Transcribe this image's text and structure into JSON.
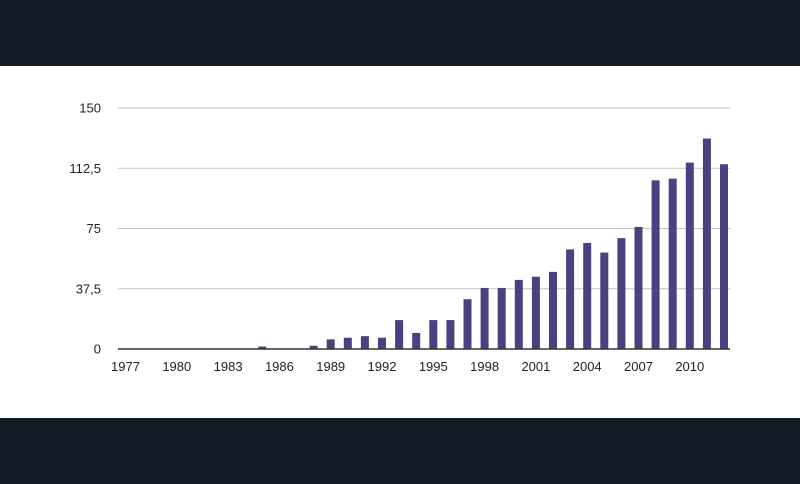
{
  "colors": {
    "background": "#121a24",
    "panel": "#ffffff",
    "bar": "#4c4080",
    "grid": "#c4c4c4",
    "axis": "#333333"
  },
  "chart_data": {
    "type": "bar",
    "title": "",
    "xlabel": "",
    "ylabel": "",
    "grid": true,
    "legend": "none",
    "ylim": [
      0,
      150
    ],
    "y_ticks": [
      0,
      37.5,
      75,
      112.5,
      150
    ],
    "y_tick_labels": [
      "0",
      "37,5",
      "75",
      "112,5",
      "150"
    ],
    "x_tick_labels": [
      "1977",
      "1980",
      "1983",
      "1986",
      "1989",
      "1992",
      "1995",
      "1998",
      "2001",
      "2004",
      "2007",
      "2010"
    ],
    "categories": [
      "1977",
      "1978",
      "1979",
      "1980",
      "1981",
      "1982",
      "1983",
      "1984",
      "1985",
      "1986",
      "1987",
      "1988",
      "1989",
      "1990",
      "1991",
      "1992",
      "1993",
      "1994",
      "1995",
      "1996",
      "1997",
      "1998",
      "1999",
      "2000",
      "2001",
      "2002",
      "2003",
      "2004",
      "2005",
      "2006",
      "2007",
      "2008",
      "2009",
      "2010",
      "2011",
      "2012"
    ],
    "values": [
      0,
      0,
      0,
      0,
      0,
      0,
      0,
      0,
      1.5,
      0,
      0,
      2,
      6,
      7,
      8,
      7,
      18,
      10,
      18,
      18,
      31,
      38,
      38,
      43,
      45,
      48,
      62,
      66,
      60,
      69,
      76,
      105,
      106,
      116,
      131,
      115
    ]
  }
}
